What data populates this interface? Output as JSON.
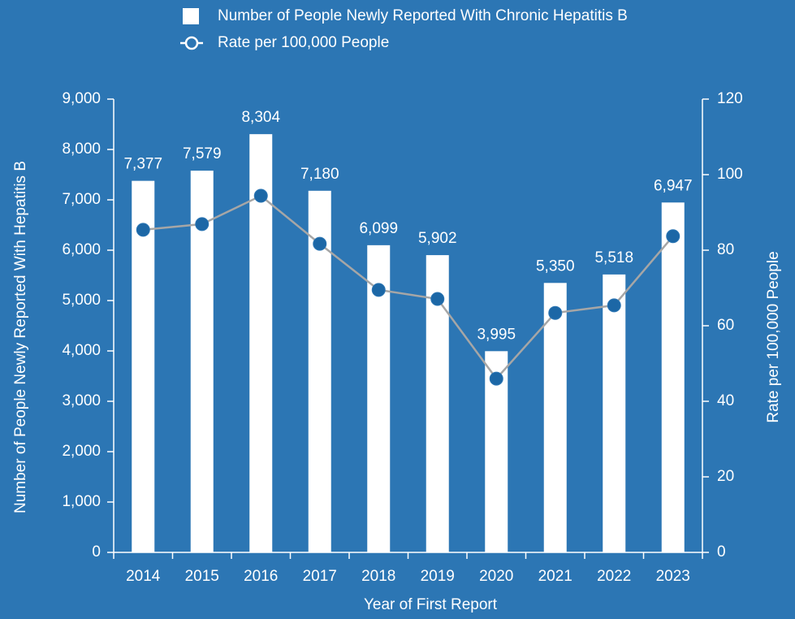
{
  "chart_data": {
    "type": "bar_line",
    "categories": [
      "2014",
      "2015",
      "2016",
      "2017",
      "2018",
      "2019",
      "2020",
      "2021",
      "2022",
      "2023"
    ],
    "series": [
      {
        "name": "Number of People Newly Reported With Chronic Hepatitis B",
        "type": "bar",
        "color": "#ffffff",
        "values": [
          7377,
          7579,
          8304,
          7180,
          6099,
          5902,
          3995,
          5350,
          5518,
          6947
        ],
        "value_labels": [
          "7,377",
          "7,579",
          "8,304",
          "7,180",
          "6,099",
          "5,902",
          "3,995",
          "5,350",
          "5,518",
          "6,947"
        ]
      },
      {
        "name": "Rate per 100,000 People",
        "type": "line",
        "axis": "y2",
        "color": "#a6a6a6",
        "values": [
          85.4,
          86.9,
          94.4,
          81.7,
          69.5,
          67.1,
          46.0,
          63.4,
          65.4,
          83.7
        ]
      }
    ],
    "xlabel": "Year of First Report",
    "ylabel": "Number of People Newly Reported With Hepatitis B",
    "y2label": "Rate per 100,000 People",
    "ylim": [
      0,
      9000
    ],
    "yticks": [
      0,
      {
        "value": 1000,
        "label": "1,000"
      },
      {
        "value": 2000,
        "label": "2,000"
      },
      {
        "value": 3000,
        "label": "3,000"
      },
      {
        "value": 4000,
        "label": "4,000"
      },
      {
        "value": 5000,
        "label": "5,000"
      },
      {
        "value": 6000,
        "label": "6,000"
      },
      {
        "value": 7000,
        "label": "7,000"
      },
      {
        "value": 8000,
        "label": "8,000"
      },
      {
        "value": 9000,
        "label": "9,000"
      }
    ],
    "y2lim": [
      0,
      120
    ],
    "y2ticks": [
      0,
      20,
      40,
      60,
      80,
      100,
      120
    ],
    "grid": false,
    "legend": "top"
  }
}
